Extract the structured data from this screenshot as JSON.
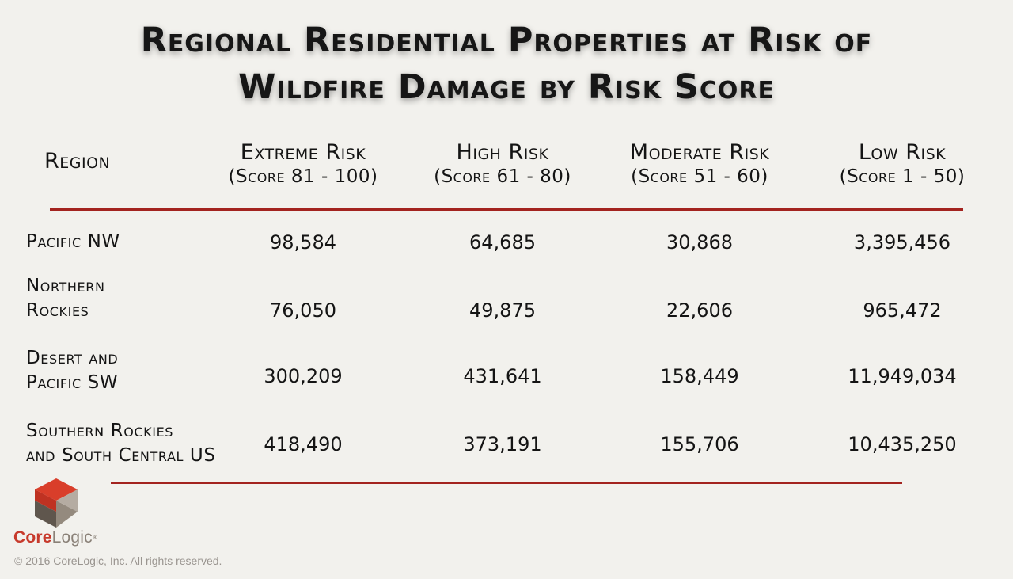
{
  "title": {
    "line1": "Regional Residential Properties at Risk of",
    "line2": "Wildfire Damage by Risk Score"
  },
  "chart_data": {
    "type": "table",
    "title": "Regional Residential Properties at Risk of Wildfire Damage by Risk Score",
    "columns": [
      {
        "name": "Region"
      },
      {
        "name": "Extreme Risk",
        "subtitle": "(Score 81 - 100)"
      },
      {
        "name": "High Risk",
        "subtitle": "(Score 61 - 80)"
      },
      {
        "name": "Moderate Risk",
        "subtitle": "(Score 51 - 60)"
      },
      {
        "name": "Low Risk",
        "subtitle": "(Score 1 - 50)"
      }
    ],
    "rows": [
      {
        "region_lines": [
          "Pacific NW"
        ],
        "values": [
          "98,584",
          "64,685",
          "30,868",
          "3,395,456"
        ]
      },
      {
        "region_lines": [
          "Northern",
          "Rockies"
        ],
        "values": [
          "76,050",
          "49,875",
          "22,606",
          "965,472"
        ]
      },
      {
        "region_lines": [
          "Desert and",
          "Pacific SW"
        ],
        "values": [
          "300,209",
          "431,641",
          "158,449",
          "11,949,034"
        ]
      },
      {
        "region_lines": [
          "Southern Rockies",
          "and South Central US"
        ],
        "values": [
          "418,490",
          "373,191",
          "155,706",
          "10,435,250"
        ]
      }
    ],
    "accent_color": "#a3231f"
  },
  "footer": {
    "brand_core": "Core",
    "brand_logic": "Logic",
    "brand_mark": "®",
    "copyright": "© 2016 CoreLogic, Inc. All rights reserved."
  }
}
